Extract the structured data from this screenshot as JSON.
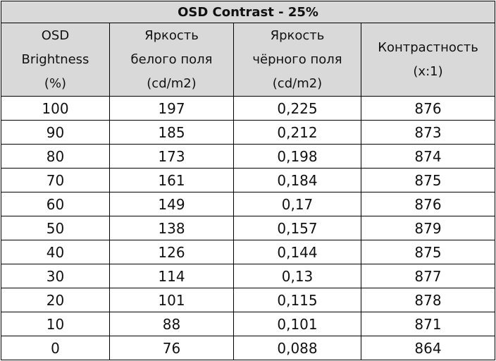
{
  "chart_data": {
    "type": "table",
    "title": "OSD Contrast - 25%",
    "columns": [
      {
        "lines": [
          "OSD",
          "Brightness",
          "(%)"
        ]
      },
      {
        "lines": [
          "Яркость",
          "белого поля",
          "(cd/m2)"
        ]
      },
      {
        "lines": [
          "Яркость",
          "чёрного поля",
          "(cd/m2)"
        ]
      },
      {
        "lines": [
          "Контрастность",
          "(x:1)"
        ]
      }
    ],
    "rows": [
      [
        "100",
        "197",
        "0,225",
        "876"
      ],
      [
        "90",
        "185",
        "0,212",
        "873"
      ],
      [
        "80",
        "173",
        "0,198",
        "874"
      ],
      [
        "70",
        "161",
        "0,184",
        "875"
      ],
      [
        "60",
        "149",
        "0,17",
        "876"
      ],
      [
        "50",
        "138",
        "0,157",
        "879"
      ],
      [
        "40",
        "126",
        "0,144",
        "875"
      ],
      [
        "30",
        "114",
        "0,13",
        "877"
      ],
      [
        "20",
        "101",
        "0,115",
        "878"
      ],
      [
        "10",
        "88",
        "0,101",
        "871"
      ],
      [
        "0",
        "76",
        "0,088",
        "864"
      ]
    ]
  },
  "colors": {
    "header_bg": "#d9d9d9",
    "body_bg": "#ffffff",
    "border": "#000000",
    "text": "#111111"
  }
}
